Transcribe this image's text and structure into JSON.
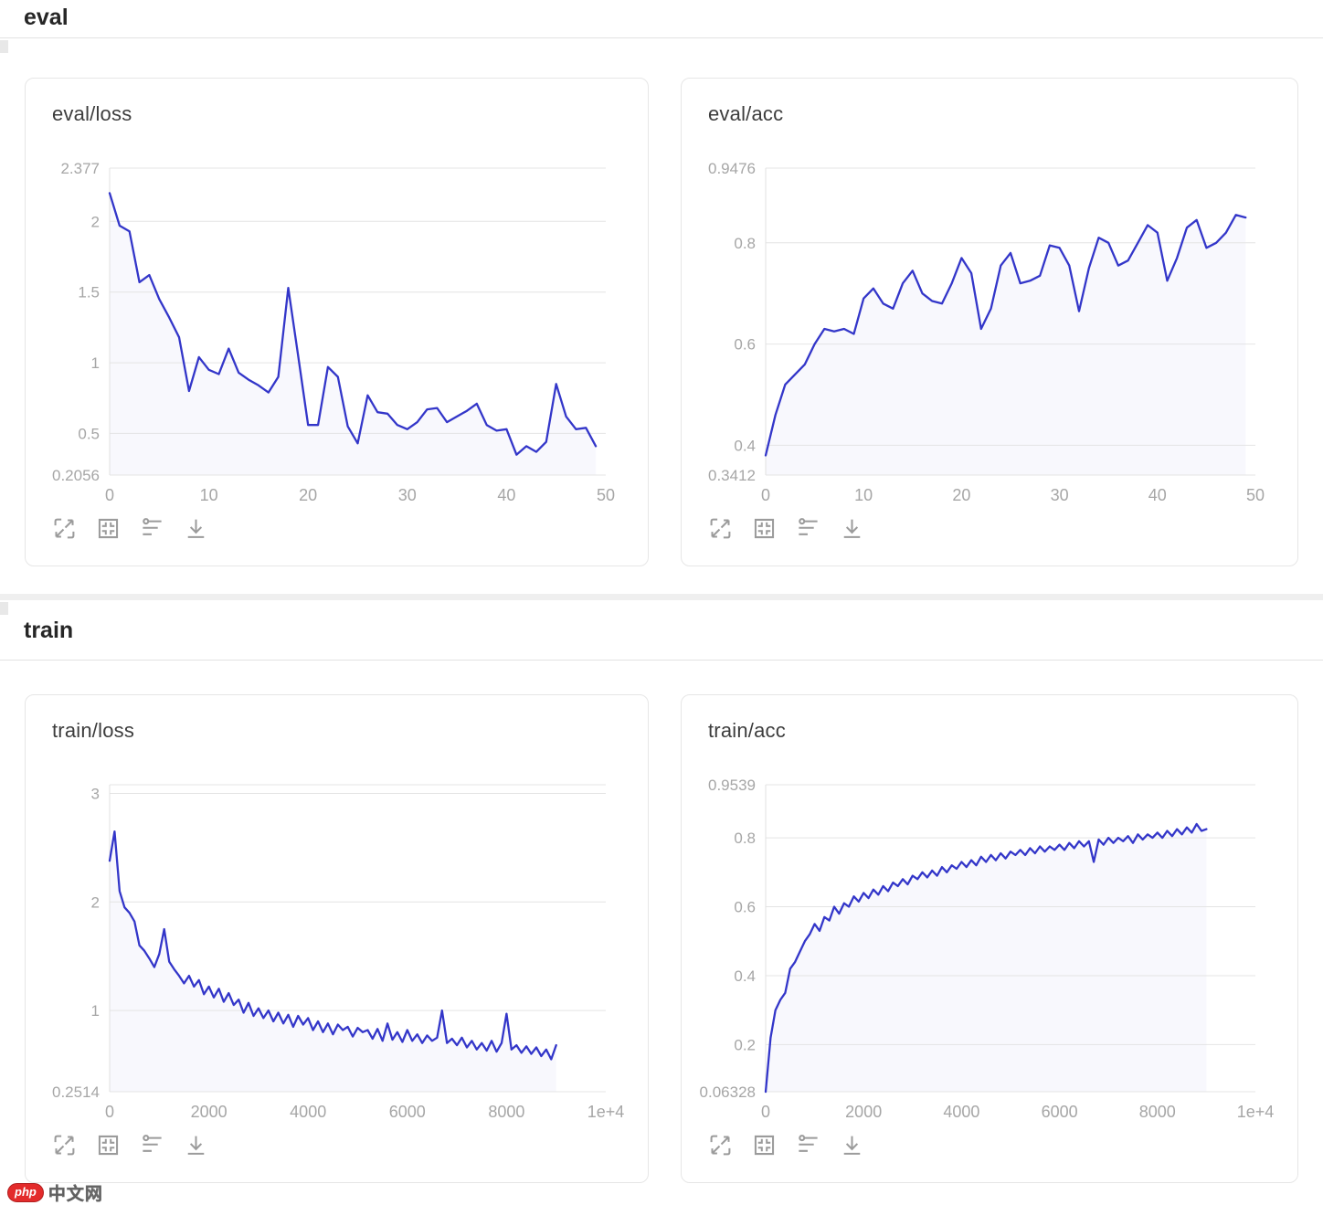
{
  "sections": {
    "eval": {
      "label": "eval"
    },
    "train": {
      "label": "train"
    }
  },
  "watermark": {
    "brand": "php",
    "site": "中文网"
  },
  "card_toolbar_icons": [
    "fullscreen",
    "fit-view",
    "settings-sliders",
    "download"
  ],
  "accent_color": "#3336c9",
  "chart_data": [
    {
      "type": "line",
      "title": "eval/loss",
      "color": "#3336c9",
      "x_start": 0,
      "x_step": 1,
      "x_max": 50,
      "xticks": [
        {
          "v": 0,
          "label": "0"
        },
        {
          "v": 10,
          "label": "10"
        },
        {
          "v": 20,
          "label": "20"
        },
        {
          "v": 30,
          "label": "30"
        },
        {
          "v": 40,
          "label": "40"
        },
        {
          "v": 50,
          "label": "50"
        }
      ],
      "ymin": 0.2056,
      "ymax": 2.377,
      "gridlines": [
        {
          "v": 2.377,
          "label": "2.377"
        },
        {
          "v": 2,
          "label": "2"
        },
        {
          "v": 1.5,
          "label": "1.5"
        },
        {
          "v": 1,
          "label": "1"
        },
        {
          "v": 0.5,
          "label": "0.5"
        },
        {
          "v": 0.2056,
          "label": "0.2056"
        }
      ],
      "values": [
        2.2,
        1.97,
        1.93,
        1.57,
        1.62,
        1.45,
        1.32,
        1.18,
        0.8,
        1.04,
        0.95,
        0.92,
        1.1,
        0.93,
        0.88,
        0.84,
        0.79,
        0.9,
        1.53,
        1.05,
        0.56,
        0.56,
        0.97,
        0.9,
        0.55,
        0.43,
        0.77,
        0.65,
        0.64,
        0.56,
        0.53,
        0.58,
        0.67,
        0.68,
        0.58,
        0.62,
        0.66,
        0.71,
        0.56,
        0.52,
        0.53,
        0.35,
        0.41,
        0.37,
        0.44,
        0.85,
        0.62,
        0.53,
        0.54,
        0.41
      ]
    },
    {
      "type": "line",
      "title": "eval/acc",
      "color": "#3336c9",
      "x_start": 0,
      "x_step": 1,
      "x_max": 50,
      "xticks": [
        {
          "v": 0,
          "label": "0"
        },
        {
          "v": 10,
          "label": "10"
        },
        {
          "v": 20,
          "label": "20"
        },
        {
          "v": 30,
          "label": "30"
        },
        {
          "v": 40,
          "label": "40"
        },
        {
          "v": 50,
          "label": "50"
        }
      ],
      "ymin": 0.3412,
      "ymax": 0.9476,
      "gridlines": [
        {
          "v": 0.9476,
          "label": "0.9476"
        },
        {
          "v": 0.8,
          "label": "0.8"
        },
        {
          "v": 0.6,
          "label": "0.6"
        },
        {
          "v": 0.4,
          "label": "0.4"
        },
        {
          "v": 0.3412,
          "label": "0.3412"
        }
      ],
      "values": [
        0.38,
        0.46,
        0.52,
        0.54,
        0.56,
        0.6,
        0.63,
        0.625,
        0.63,
        0.62,
        0.69,
        0.71,
        0.68,
        0.67,
        0.72,
        0.745,
        0.7,
        0.685,
        0.68,
        0.72,
        0.77,
        0.74,
        0.63,
        0.67,
        0.755,
        0.78,
        0.72,
        0.725,
        0.735,
        0.795,
        0.79,
        0.755,
        0.665,
        0.75,
        0.81,
        0.8,
        0.755,
        0.765,
        0.8,
        0.835,
        0.82,
        0.725,
        0.77,
        0.83,
        0.845,
        0.79,
        0.8,
        0.82,
        0.855,
        0.85
      ]
    },
    {
      "type": "line",
      "title": "train/loss",
      "color": "#3336c9",
      "x_start": 0,
      "x_step": 100,
      "x_max": 10000,
      "xticks": [
        {
          "v": 0,
          "label": "0"
        },
        {
          "v": 2000,
          "label": "2000"
        },
        {
          "v": 4000,
          "label": "4000"
        },
        {
          "v": 6000,
          "label": "6000"
        },
        {
          "v": 8000,
          "label": "8000"
        },
        {
          "v": 10000,
          "label": "1e+4"
        }
      ],
      "ymin": 0.2514,
      "ymax": 3.08,
      "gridlines": [
        {
          "v": 3.08,
          "label": ""
        },
        {
          "v": 3,
          "label": "3"
        },
        {
          "v": 2,
          "label": "2"
        },
        {
          "v": 1,
          "label": "1"
        },
        {
          "v": 0.2514,
          "label": "0.2514"
        }
      ],
      "values": [
        2.38,
        2.65,
        2.1,
        1.95,
        1.9,
        1.82,
        1.6,
        1.55,
        1.48,
        1.4,
        1.52,
        1.75,
        1.45,
        1.38,
        1.32,
        1.25,
        1.32,
        1.22,
        1.28,
        1.15,
        1.22,
        1.12,
        1.2,
        1.08,
        1.16,
        1.05,
        1.1,
        0.98,
        1.07,
        0.95,
        1.02,
        0.93,
        1.0,
        0.9,
        0.98,
        0.88,
        0.96,
        0.85,
        0.95,
        0.87,
        0.93,
        0.82,
        0.9,
        0.8,
        0.88,
        0.78,
        0.87,
        0.82,
        0.85,
        0.76,
        0.84,
        0.8,
        0.82,
        0.74,
        0.83,
        0.72,
        0.88,
        0.73,
        0.8,
        0.71,
        0.82,
        0.72,
        0.78,
        0.7,
        0.77,
        0.72,
        0.75,
        1.0,
        0.7,
        0.74,
        0.68,
        0.75,
        0.66,
        0.72,
        0.64,
        0.7,
        0.63,
        0.72,
        0.62,
        0.7,
        0.97,
        0.64,
        0.68,
        0.61,
        0.67,
        0.6,
        0.66,
        0.58,
        0.64,
        0.55,
        0.68
      ]
    },
    {
      "type": "line",
      "title": "train/acc",
      "color": "#3336c9",
      "x_start": 0,
      "x_step": 100,
      "x_max": 10000,
      "xticks": [
        {
          "v": 0,
          "label": "0"
        },
        {
          "v": 2000,
          "label": "2000"
        },
        {
          "v": 4000,
          "label": "4000"
        },
        {
          "v": 6000,
          "label": "6000"
        },
        {
          "v": 8000,
          "label": "8000"
        },
        {
          "v": 10000,
          "label": "1e+4"
        }
      ],
      "ymin": 0.06328,
      "ymax": 0.9539,
      "gridlines": [
        {
          "v": 0.9539,
          "label": "0.9539"
        },
        {
          "v": 0.8,
          "label": "0.8"
        },
        {
          "v": 0.6,
          "label": "0.6"
        },
        {
          "v": 0.4,
          "label": "0.4"
        },
        {
          "v": 0.2,
          "label": "0.2"
        },
        {
          "v": 0.06328,
          "label": "0.06328"
        }
      ],
      "values": [
        0.063,
        0.22,
        0.3,
        0.33,
        0.35,
        0.42,
        0.44,
        0.47,
        0.5,
        0.52,
        0.55,
        0.53,
        0.57,
        0.56,
        0.6,
        0.58,
        0.61,
        0.6,
        0.63,
        0.615,
        0.64,
        0.625,
        0.65,
        0.635,
        0.66,
        0.645,
        0.67,
        0.66,
        0.68,
        0.665,
        0.69,
        0.68,
        0.7,
        0.685,
        0.705,
        0.69,
        0.715,
        0.7,
        0.72,
        0.71,
        0.73,
        0.715,
        0.735,
        0.72,
        0.745,
        0.73,
        0.75,
        0.735,
        0.755,
        0.74,
        0.76,
        0.75,
        0.765,
        0.75,
        0.77,
        0.755,
        0.775,
        0.76,
        0.775,
        0.765,
        0.78,
        0.765,
        0.785,
        0.77,
        0.79,
        0.775,
        0.79,
        0.73,
        0.795,
        0.78,
        0.8,
        0.785,
        0.8,
        0.79,
        0.805,
        0.785,
        0.81,
        0.795,
        0.81,
        0.8,
        0.815,
        0.8,
        0.82,
        0.805,
        0.825,
        0.81,
        0.83,
        0.815,
        0.84,
        0.82,
        0.825
      ]
    }
  ]
}
